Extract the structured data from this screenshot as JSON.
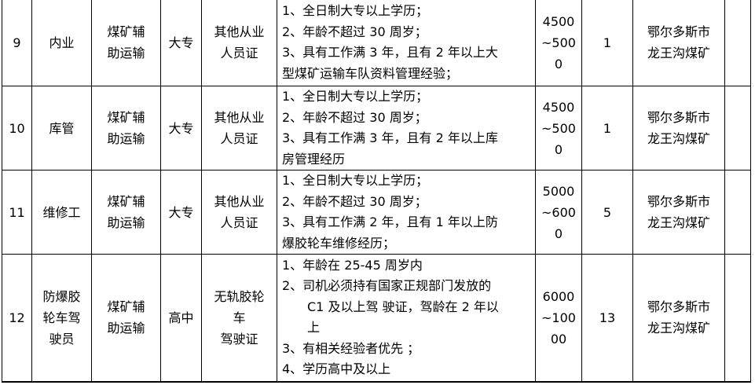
{
  "rows": [
    {
      "no": "9",
      "position": "内业",
      "category": [
        "煤矿辅",
        "助运输"
      ],
      "education": "大专",
      "certificate": [
        "其他从业",
        "人员证"
      ],
      "requirements": [
        "1、全日制大专以上学历；",
        "2、年龄不超过 30 周岁；",
        "3、具有工作满 3 年，且有 2 年以上大",
        "型煤矿运输车队资料管理经验；"
      ],
      "salary": [
        "4500",
        "~500",
        "0"
      ],
      "count": "1",
      "location": [
        "鄂尔多斯市",
        "龙王沟煤矿"
      ],
      "note": ""
    },
    {
      "no": "10",
      "position": "库管",
      "category": [
        "煤矿辅",
        "助运输"
      ],
      "education": "大专",
      "certificate": [
        "其他从业",
        "人员证"
      ],
      "requirements": [
        "1、全日制大专以上学历；",
        "2、年龄不超过 30 周岁；",
        "3、具有工作满 3 年，且有 2 年以上库",
        "房管理经历"
      ],
      "salary": [
        "4500",
        "~500",
        "0"
      ],
      "count": "1",
      "location": [
        "鄂尔多斯市",
        "龙王沟煤矿"
      ],
      "note": ""
    },
    {
      "no": "11",
      "position": "维修工",
      "category": [
        "煤矿辅",
        "助运输"
      ],
      "education": "大专",
      "certificate": [
        "其他从业",
        "人员证"
      ],
      "requirements": [
        "1、全日制大专以上学历；",
        "2、年龄不超过 30 周岁；",
        "3、具有工作满 2 年，且有 1 年以上防",
        "爆胶轮车维修经历；"
      ],
      "salary": [
        "5000",
        "~600",
        "0"
      ],
      "count": "5",
      "location": [
        "鄂尔多斯市",
        "龙王沟煤矿"
      ],
      "note": ""
    },
    {
      "no": "12",
      "position": [
        "防爆胶",
        "轮车驾",
        "驶员"
      ],
      "category": [
        "煤矿辅",
        "助运输"
      ],
      "education": "高中",
      "certificate": [
        "无轨胶轮",
        "车",
        "驾驶证"
      ],
      "requirements": [
        "1、年龄在 25-45 周岁内",
        "2、司机必须持有国家正规部门发放的",
        "C1 及以上驾 驶证，驾龄在 2 年以",
        "上",
        "3、有相关经验者优先 ；",
        "4、学历高中及以上"
      ],
      "salary": [
        "6000",
        "~100",
        "00"
      ],
      "count": "13",
      "location": [
        "鄂尔多斯市",
        "龙王沟煤矿"
      ],
      "note": ""
    }
  ]
}
